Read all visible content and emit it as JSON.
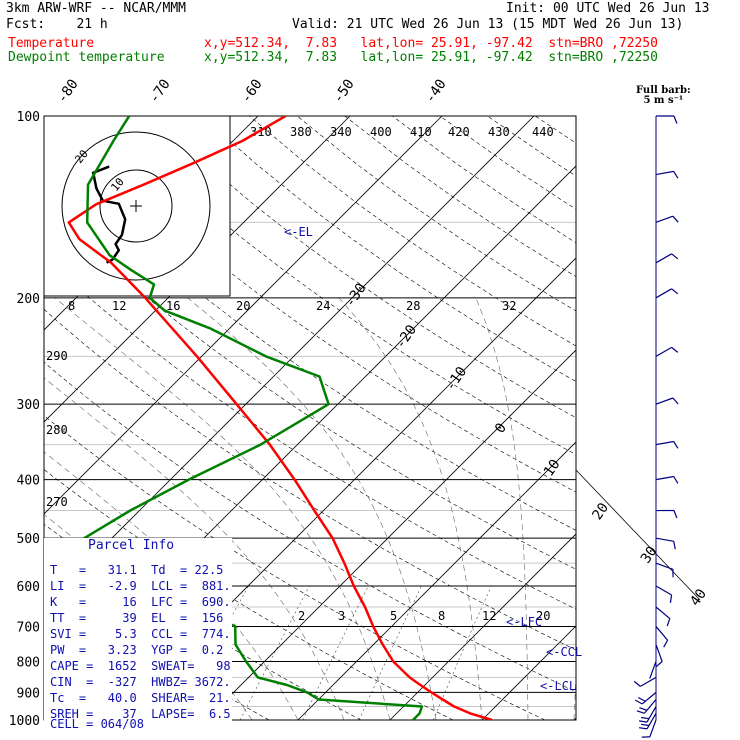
{
  "header": {
    "model": "3km ARW-WRF -- NCAR/MMM",
    "init": "Init: 00 UTC Wed 26 Jun 13",
    "fcst": "Fcst:    21 h",
    "valid": "Valid: 21 UTC Wed 26 Jun 13 (15 MDT Wed 26 Jun 13)"
  },
  "legend": [
    {
      "label": "Temperature",
      "info": "x,y=512.34,  7.83   lat,lon= 25.91, -97.42  stn=BRO ,72250",
      "color": "#ff0000"
    },
    {
      "label": "Dewpoint temperature",
      "info": "x,y=512.34,  7.83   lat,lon= 25.91, -97.42  stn=BRO ,72250",
      "color": "#008000"
    }
  ],
  "colors": {
    "temperature": "#ff0000",
    "dewpoint": "#008000",
    "annotation": "#1010b0",
    "barb": "#000080"
  },
  "barb_header": [
    "Full barb:",
    "5 m s⁻¹"
  ],
  "parcel_info": {
    "title": "Parcel Info",
    "rows": [
      "T   =   31.1  Td  = 22.5",
      "LI  =   -2.9  LCL =  881.",
      "K   =     16  LFC =  690.",
      "TT  =     39  EL  =  156",
      "SVI =    5.3  CCL =  774.",
      "PW  =   3.23  YGP =  0.2",
      "CAPE =  1652  SWEAT=   98",
      "CIN  =  -327  HWBZ= 3672.",
      "Tc  =   40.0  SHEAR=  21.",
      "SREH =    37  LAPSE=  6.5",
      "CELL = 064/08"
    ]
  },
  "chart_data": {
    "type": "line",
    "diagram": "skew-T log-P",
    "pressure_labels": [
      "100",
      "200",
      "300",
      "400",
      "500",
      "600",
      "700",
      "800",
      "900",
      "1000"
    ],
    "isotherm_labels_top": [
      "-80",
      "-70",
      "-60",
      "-50",
      "-40"
    ],
    "isotherm_labels_right": [
      "-30",
      "-20",
      "-10",
      "0",
      "10",
      "20",
      "30",
      "40"
    ],
    "theta_e_labels": [
      "310",
      "380",
      "340",
      "400",
      "410",
      "420",
      "430",
      "440"
    ],
    "dry_adiabat_labels": [
      "290",
      "280",
      "270"
    ],
    "mixing_ratio_labels": [
      "2",
      "3",
      "5",
      "8",
      "12",
      "20"
    ],
    "hodograph_speed_labels": [
      "kts",
      "8",
      "12",
      "16",
      "20",
      "24",
      "28",
      "32"
    ],
    "hodograph_ring_labels": [
      "10",
      "20"
    ],
    "level_markers": [
      "<-EL",
      "<-LFC",
      "<-CCL",
      "<-LCL"
    ],
    "series": [
      {
        "name": "Temperature",
        "points": [
          [
            1000,
            31.1
          ],
          [
            975,
            28
          ],
          [
            950,
            25.5
          ],
          [
            925,
            23.5
          ],
          [
            900,
            21.5
          ],
          [
            875,
            19.5
          ],
          [
            850,
            17.5
          ],
          [
            800,
            14
          ],
          [
            750,
            11
          ],
          [
            700,
            8
          ],
          [
            650,
            5
          ],
          [
            600,
            1.5
          ],
          [
            550,
            -2
          ],
          [
            500,
            -6
          ],
          [
            450,
            -11
          ],
          [
            400,
            -16.5
          ],
          [
            350,
            -23
          ],
          [
            300,
            -31
          ],
          [
            250,
            -40.5
          ],
          [
            200,
            -52.5
          ],
          [
            175,
            -60
          ],
          [
            160,
            -66
          ],
          [
            150,
            -69
          ],
          [
            140,
            -68
          ],
          [
            130,
            -65
          ],
          [
            120,
            -62
          ],
          [
            110,
            -59
          ],
          [
            100,
            -57
          ]
        ]
      },
      {
        "name": "Dewpoint temperature",
        "points": [
          [
            1000,
            22.5
          ],
          [
            975,
            22.5
          ],
          [
            950,
            22
          ],
          [
            925,
            10
          ],
          [
            900,
            8
          ],
          [
            875,
            5
          ],
          [
            850,
            1
          ],
          [
            800,
            -2
          ],
          [
            750,
            -5
          ],
          [
            700,
            -7
          ],
          [
            650,
            -14
          ],
          [
            600,
            -24
          ],
          [
            550,
            -31
          ],
          [
            500,
            -33
          ],
          [
            450,
            -31
          ],
          [
            400,
            -28
          ],
          [
            350,
            -24
          ],
          [
            300,
            -21
          ],
          [
            270,
            -25
          ],
          [
            250,
            -33
          ],
          [
            225,
            -42
          ],
          [
            210,
            -49
          ],
          [
            200,
            -52
          ],
          [
            190,
            -53
          ],
          [
            180,
            -57
          ],
          [
            170,
            -61
          ],
          [
            150,
            -67
          ],
          [
            130,
            -71
          ],
          [
            110,
            -73
          ],
          [
            100,
            -74
          ]
        ]
      }
    ],
    "hodograph": [
      [
        0.2,
        3
      ],
      [
        2,
        4
      ],
      [
        4,
        7
      ],
      [
        3,
        9
      ],
      [
        5,
        12
      ],
      [
        6,
        17
      ],
      [
        4,
        22
      ],
      [
        -1,
        23
      ],
      [
        -3,
        27
      ],
      [
        -4,
        32
      ],
      [
        1,
        34
      ]
    ],
    "wind_barbs": [
      {
        "p": 1000,
        "dir": 200,
        "spd": 8
      },
      {
        "p": 975,
        "dir": 210,
        "spd": 10
      },
      {
        "p": 950,
        "dir": 210,
        "spd": 12
      },
      {
        "p": 925,
        "dir": 220,
        "spd": 12
      },
      {
        "p": 900,
        "dir": 230,
        "spd": 10
      },
      {
        "p": 850,
        "dir": 240,
        "spd": 6
      },
      {
        "p": 800,
        "dir": 200,
        "spd": 4
      },
      {
        "p": 750,
        "dir": 160,
        "spd": 5
      },
      {
        "p": 700,
        "dir": 140,
        "spd": 6
      },
      {
        "p": 650,
        "dir": 130,
        "spd": 6
      },
      {
        "p": 600,
        "dir": 120,
        "spd": 7
      },
      {
        "p": 550,
        "dir": 110,
        "spd": 6
      },
      {
        "p": 500,
        "dir": 100,
        "spd": 6
      },
      {
        "p": 450,
        "dir": 90,
        "spd": 5
      },
      {
        "p": 400,
        "dir": 80,
        "spd": 5
      },
      {
        "p": 350,
        "dir": 80,
        "spd": 5
      },
      {
        "p": 300,
        "dir": 70,
        "spd": 6
      },
      {
        "p": 250,
        "dir": 60,
        "spd": 7
      },
      {
        "p": 200,
        "dir": 60,
        "spd": 8
      },
      {
        "p": 175,
        "dir": 60,
        "spd": 7
      },
      {
        "p": 150,
        "dir": 70,
        "spd": 8
      },
      {
        "p": 125,
        "dir": 80,
        "spd": 8
      },
      {
        "p": 100,
        "dir": 90,
        "spd": 9
      }
    ]
  }
}
